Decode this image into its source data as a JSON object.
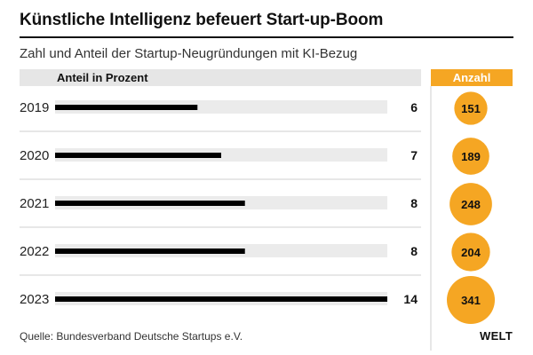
{
  "title": "Künstliche Intelligenz befeuert Start-up-Boom",
  "subtitle": "Zahl und Anteil der Startup-Neugründungen mit KI-Bezug",
  "source": "Quelle: Bundesverband Deutsche Startups e.V.",
  "logo": "WELT",
  "colors": {
    "bar": "#000000",
    "track": "#ebebeb",
    "accent": "#f5a623",
    "rule": "#cfcfcf"
  },
  "chart_data": {
    "type": "bar",
    "orientation": "horizontal",
    "bar_header": "Anteil in Prozent",
    "count_header": "Anzahl",
    "categories": [
      "2019",
      "2020",
      "2021",
      "2022",
      "2023"
    ],
    "series": [
      {
        "name": "Anteil in Prozent",
        "values": [
          6,
          7,
          8,
          8,
          14
        ]
      },
      {
        "name": "Anzahl",
        "values": [
          151,
          189,
          248,
          204,
          341
        ]
      }
    ],
    "xlim": [
      0,
      14
    ],
    "grid": false,
    "legend": "none"
  }
}
